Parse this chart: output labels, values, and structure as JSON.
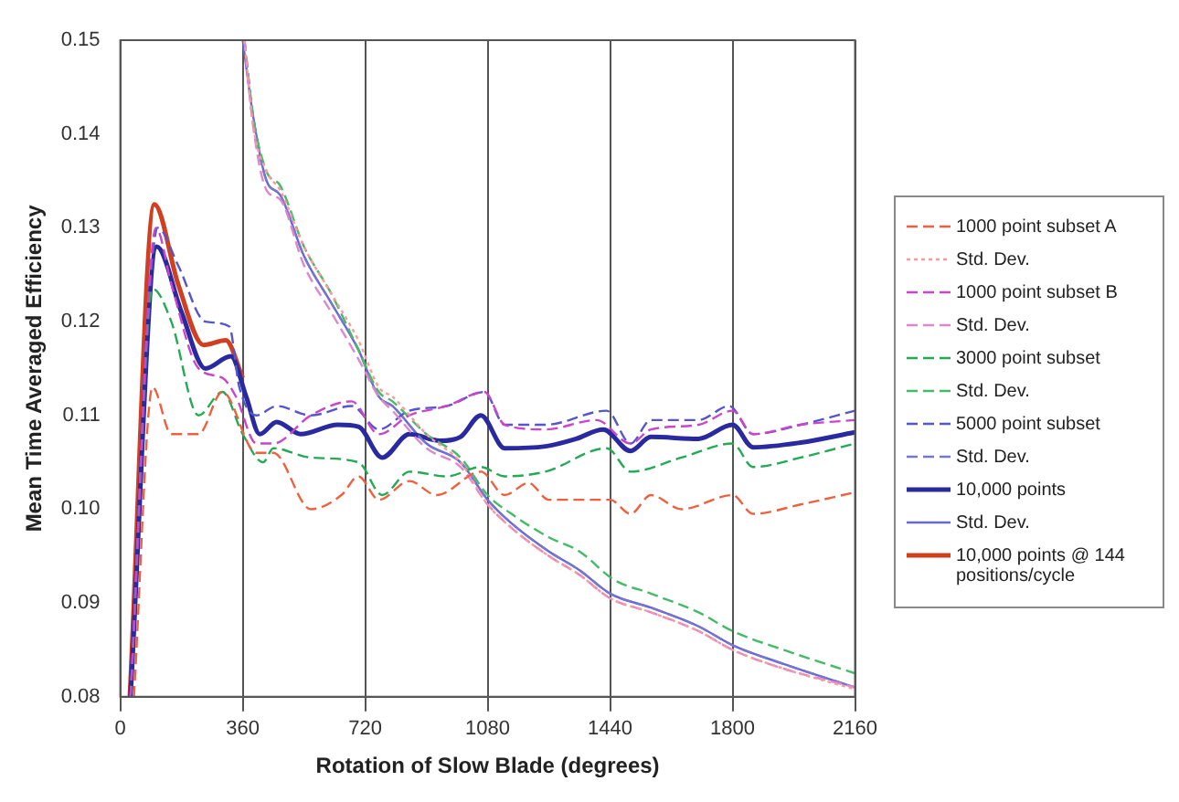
{
  "chart_data": {
    "type": "line",
    "xlabel": "Rotation of Slow Blade (degrees)",
    "ylabel": "Mean Time Averaged Efficiency",
    "xlim": [
      0,
      2160
    ],
    "xticks": [
      0,
      360,
      720,
      1080,
      1440,
      1800,
      2160
    ],
    "ylim": [
      0.08,
      0.15
    ],
    "yticks": [
      0.08,
      0.09,
      {
        "value": 0.1,
        "label": "0.10"
      },
      0.11,
      0.12,
      0.13,
      0.14,
      0.15
    ],
    "grid": "x",
    "legend": "right",
    "marker": "none",
    "series": [
      {
        "name": "1000 point subset A",
        "color": "#f06040",
        "line_style": "dashed",
        "x": [
          40,
          95,
          150,
          230,
          300,
          400,
          450,
          560,
          650,
          700,
          760,
          850,
          930,
          1060,
          1130,
          1200,
          1260,
          1440,
          1500,
          1560,
          1650,
          1800,
          1860,
          2000,
          2160
        ],
        "values": [
          0.08,
          0.113,
          0.108,
          0.108,
          0.1125,
          0.106,
          0.106,
          0.1,
          0.1015,
          0.1035,
          0.101,
          0.103,
          0.1015,
          0.104,
          0.1015,
          0.1028,
          0.101,
          0.101,
          0.0995,
          0.1015,
          0.1,
          0.1015,
          0.0995,
          0.1005,
          0.1018
        ]
      },
      {
        "name": "Std. Dev.",
        "color": "#ff9999",
        "line_style": "dotted",
        "x": [
          365,
          390,
          430,
          470,
          540,
          620,
          700,
          760,
          800,
          900,
          1000,
          1080,
          1150,
          1260,
          1350,
          1440,
          1560,
          1700,
          1800,
          1950,
          2160
        ],
        "values": [
          0.15,
          0.141,
          0.136,
          0.134,
          0.128,
          0.123,
          0.118,
          0.113,
          0.112,
          0.108,
          0.105,
          0.1005,
          0.098,
          0.095,
          0.093,
          0.0905,
          0.089,
          0.087,
          0.085,
          0.083,
          0.0808
        ]
      },
      {
        "name": "1000 point subset B",
        "color": "#cc44cc",
        "line_style": "dashed",
        "x": [
          30,
          105,
          150,
          230,
          300,
          340,
          400,
          450,
          560,
          680,
          760,
          850,
          960,
          1070,
          1130,
          1250,
          1400,
          1500,
          1560,
          1700,
          1800,
          1860,
          2000,
          2160
        ],
        "values": [
          0.08,
          0.13,
          0.124,
          0.115,
          0.114,
          0.112,
          0.107,
          0.107,
          0.11,
          0.1115,
          0.108,
          0.11,
          0.111,
          0.1125,
          0.109,
          0.1085,
          0.1095,
          0.107,
          0.1085,
          0.109,
          0.1105,
          0.108,
          0.109,
          0.1095
        ]
      },
      {
        "name": "Std. Dev.",
        "color": "#dd88cc",
        "line_style": "dashed",
        "x": [
          365,
          390,
          430,
          470,
          540,
          620,
          700,
          760,
          800,
          900,
          1000,
          1080,
          1150,
          1260,
          1350,
          1440,
          1560,
          1700,
          1800,
          1950,
          2160
        ],
        "values": [
          0.15,
          0.141,
          0.134,
          0.133,
          0.126,
          0.121,
          0.116,
          0.112,
          0.1105,
          0.1065,
          0.1045,
          0.1005,
          0.098,
          0.095,
          0.093,
          0.0905,
          0.089,
          0.087,
          0.085,
          0.083,
          0.081
        ]
      },
      {
        "name": "3000 point subset",
        "color": "#22aa55",
        "line_style": "dashed",
        "x": [
          30,
          95,
          150,
          230,
          300,
          360,
          420,
          450,
          560,
          700,
          770,
          850,
          960,
          1060,
          1130,
          1250,
          1430,
          1500,
          1650,
          1800,
          1860,
          2000,
          2160
        ],
        "values": [
          0.08,
          0.1235,
          0.12,
          0.11,
          0.1125,
          0.108,
          0.105,
          0.1065,
          0.1055,
          0.105,
          0.1015,
          0.104,
          0.1035,
          0.1045,
          0.1035,
          0.104,
          0.1065,
          0.104,
          0.1055,
          0.107,
          0.1045,
          0.1055,
          0.107
        ]
      },
      {
        "name": "Std. Dev.",
        "color": "#44bb66",
        "line_style": "dashed",
        "x": [
          365,
          390,
          430,
          470,
          540,
          620,
          700,
          760,
          800,
          900,
          1000,
          1080,
          1150,
          1260,
          1350,
          1450,
          1560,
          1700,
          1800,
          1950,
          2160
        ],
        "values": [
          0.15,
          0.142,
          0.136,
          0.1345,
          0.128,
          0.123,
          0.117,
          0.1125,
          0.1115,
          0.108,
          0.1055,
          0.1015,
          0.0995,
          0.097,
          0.0955,
          0.0925,
          0.091,
          0.089,
          0.087,
          0.085,
          0.0825
        ]
      },
      {
        "name": "5000 point subset",
        "color": "#5555cc",
        "line_style": "dashed",
        "x": [
          30,
          110,
          170,
          250,
          320,
          350,
          400,
          460,
          560,
          680,
          760,
          850,
          960,
          1070,
          1130,
          1250,
          1430,
          1500,
          1560,
          1700,
          1790,
          1860,
          2000,
          2160
        ],
        "values": [
          0.08,
          0.13,
          0.126,
          0.12,
          0.1195,
          0.113,
          0.11,
          0.111,
          0.11,
          0.111,
          0.1085,
          0.1105,
          0.111,
          0.1125,
          0.109,
          0.109,
          0.1105,
          0.107,
          0.1095,
          0.1095,
          0.111,
          0.108,
          0.109,
          0.1105
        ]
      },
      {
        "name": "Std. Dev.",
        "color": "#7777cc",
        "line_style": "dashed",
        "x": [
          365,
          390,
          430,
          470,
          540,
          620,
          700,
          760,
          800,
          900,
          1000,
          1080,
          1150,
          1260,
          1350,
          1440,
          1560,
          1700,
          1800,
          1950,
          2160
        ],
        "values": [
          0.15,
          0.142,
          0.135,
          0.1335,
          0.127,
          0.122,
          0.117,
          0.112,
          0.111,
          0.107,
          0.105,
          0.101,
          0.0985,
          0.0955,
          0.0935,
          0.091,
          0.0895,
          0.0875,
          0.0855,
          0.0835,
          0.081
        ]
      },
      {
        "name": "10,000 points",
        "color": "#2a2aa0",
        "line_style": "solid",
        "x": [
          30,
          107,
          180,
          250,
          325,
          370,
          410,
          460,
          530,
          640,
          700,
          770,
          850,
          940,
          1000,
          1060,
          1130,
          1250,
          1340,
          1420,
          1500,
          1560,
          1700,
          1800,
          1860,
          2000,
          2160
        ],
        "values": [
          0.08,
          0.128,
          0.121,
          0.115,
          0.1163,
          0.112,
          0.108,
          0.1093,
          0.108,
          0.109,
          0.1088,
          0.1055,
          0.108,
          0.1073,
          0.1077,
          0.11,
          0.1065,
          0.1067,
          0.1075,
          0.1085,
          0.1062,
          0.1077,
          0.1075,
          0.109,
          0.1066,
          0.1071,
          0.1082
        ]
      },
      {
        "name": "Std. Dev.",
        "color": "#6666dd",
        "line_style": "solid",
        "x": [
          360,
          390,
          430,
          470,
          540,
          620,
          700,
          760,
          800,
          900,
          1000,
          1080,
          1150,
          1260,
          1350,
          1440,
          1560,
          1700,
          1800,
          1950,
          2160
        ],
        "values": [
          0.15,
          0.142,
          0.135,
          0.1335,
          0.127,
          0.122,
          0.117,
          0.112,
          0.111,
          0.107,
          0.105,
          0.101,
          0.0985,
          0.0955,
          0.0935,
          0.091,
          0.0895,
          0.0875,
          0.0855,
          0.0835,
          0.081
        ]
      },
      {
        "name": "10,000 points @ 144 positions/cycle",
        "color": "#d04020",
        "line_style": "solid",
        "x": [
          28,
          100,
          170,
          245,
          310,
          360
        ],
        "values": [
          0.08,
          0.1325,
          0.124,
          0.1175,
          0.118,
          0.114
        ]
      }
    ]
  }
}
